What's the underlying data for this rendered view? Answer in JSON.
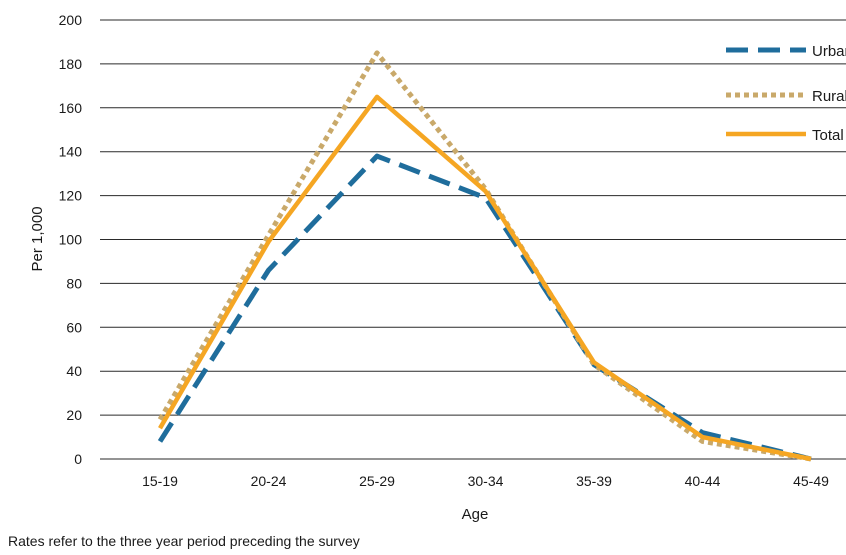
{
  "chart_data": {
    "type": "line",
    "title": "",
    "xlabel": "Age",
    "ylabel": "Per 1,000",
    "categories": [
      "15-19",
      "20-24",
      "25-29",
      "30-34",
      "35-39",
      "40-44",
      "45-49"
    ],
    "ylim": [
      0,
      200
    ],
    "yticks": [
      0,
      20,
      40,
      60,
      80,
      100,
      120,
      140,
      160,
      180,
      200
    ],
    "grid": true,
    "legend_position": "top-right",
    "series": [
      {
        "name": "Urban",
        "values": [
          8,
          86,
          138,
          119,
          43,
          12,
          0
        ],
        "color": "#1f6d9c",
        "style": "dashed"
      },
      {
        "name": "Rural",
        "values": [
          18,
          102,
          185,
          123,
          43,
          8,
          0
        ],
        "color": "#c9a96a",
        "style": "dotted"
      },
      {
        "name": "Total",
        "values": [
          14,
          99,
          165,
          122,
          44,
          10,
          0
        ],
        "color": "#f5a623",
        "style": "solid"
      }
    ]
  },
  "footnote": "Rates refer to the three year period preceding the survey"
}
